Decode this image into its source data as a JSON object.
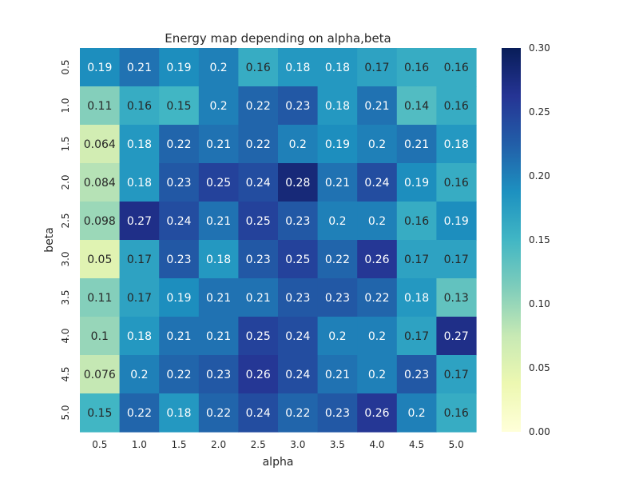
{
  "chart_data": {
    "type": "heatmap",
    "title": "Energy map depending on alpha,beta",
    "xlabel": "alpha",
    "ylabel": "beta",
    "x_categories": [
      "0.5",
      "1.0",
      "1.5",
      "2.0",
      "2.5",
      "3.0",
      "3.5",
      "4.0",
      "4.5",
      "5.0"
    ],
    "y_categories": [
      "0.5",
      "1.0",
      "1.5",
      "2.0",
      "2.5",
      "3.0",
      "3.5",
      "4.0",
      "4.5",
      "5.0"
    ],
    "values": [
      [
        "0.19",
        "0.21",
        "0.19",
        "0.2",
        "0.16",
        "0.18",
        "0.18",
        "0.17",
        "0.16",
        "0.16"
      ],
      [
        "0.11",
        "0.16",
        "0.15",
        "0.2",
        "0.22",
        "0.23",
        "0.18",
        "0.21",
        "0.14",
        "0.16"
      ],
      [
        "0.064",
        "0.18",
        "0.22",
        "0.21",
        "0.22",
        "0.2",
        "0.19",
        "0.2",
        "0.21",
        "0.18"
      ],
      [
        "0.084",
        "0.18",
        "0.23",
        "0.25",
        "0.24",
        "0.28",
        "0.21",
        "0.24",
        "0.19",
        "0.16"
      ],
      [
        "0.098",
        "0.27",
        "0.24",
        "0.21",
        "0.25",
        "0.23",
        "0.2",
        "0.2",
        "0.16",
        "0.19"
      ],
      [
        "0.05",
        "0.17",
        "0.23",
        "0.18",
        "0.23",
        "0.25",
        "0.22",
        "0.26",
        "0.17",
        "0.17"
      ],
      [
        "0.11",
        "0.17",
        "0.19",
        "0.21",
        "0.21",
        "0.23",
        "0.23",
        "0.22",
        "0.18",
        "0.13"
      ],
      [
        "0.1",
        "0.18",
        "0.21",
        "0.21",
        "0.25",
        "0.24",
        "0.2",
        "0.2",
        "0.17",
        "0.27"
      ],
      [
        "0.076",
        "0.2",
        "0.22",
        "0.23",
        "0.26",
        "0.24",
        "0.21",
        "0.2",
        "0.23",
        "0.17"
      ],
      [
        "0.15",
        "0.22",
        "0.18",
        "0.22",
        "0.24",
        "0.22",
        "0.23",
        "0.26",
        "0.2",
        "0.16"
      ]
    ],
    "colorscale": "YlGnBu",
    "vmin": 0,
    "vmax": 0.3,
    "colorbar_ticks": [
      "0.00",
      "0.05",
      "0.10",
      "0.15",
      "0.20",
      "0.25",
      "0.30"
    ],
    "colors": {
      "scale_stops": [
        "#ffffd9",
        "#edf8b1",
        "#c7e9b4",
        "#7fcdbb",
        "#41b6c4",
        "#1d91c0",
        "#225ea8",
        "#253494",
        "#081d58"
      ],
      "tick_text": "#262626"
    }
  }
}
